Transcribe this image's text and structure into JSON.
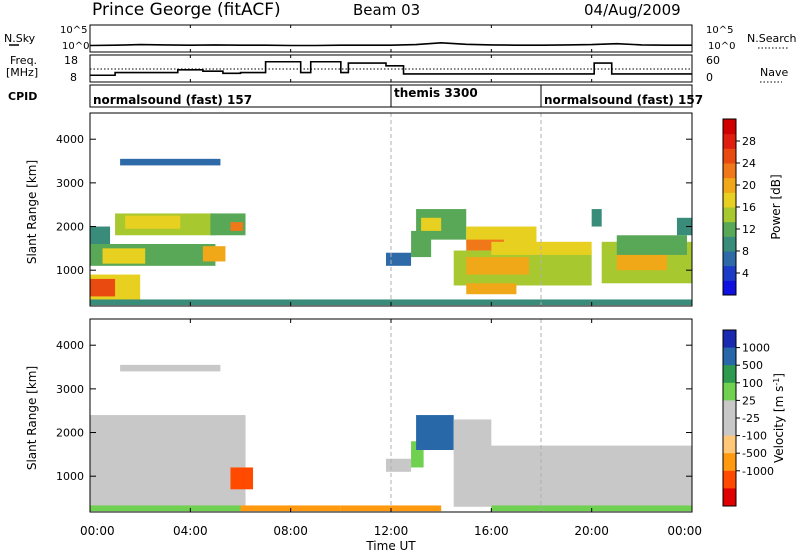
{
  "header": {
    "station": "Prince George (fitACF)",
    "beam": "Beam 03",
    "date": "04/Aug/2009"
  },
  "panel_labels": {
    "nsky": "N.Sky",
    "freq_line1": "Freq.",
    "freq_line2": "[MHz]",
    "cpid": "CPID",
    "nsearch": "N.Search",
    "nave": "Nave"
  },
  "colors": {
    "power_scale": [
      "#1010e0",
      "#1c3cc8",
      "#2e6aa8",
      "#3a8c7a",
      "#58a858",
      "#a8c830",
      "#e8d020",
      "#f0a818",
      "#f07818",
      "#e84a10",
      "#e01e10",
      "#d00000"
    ],
    "velocity_scale": [
      "#e00000",
      "#ff4a00",
      "#ff9a10",
      "#ffc878",
      "#c8c8c8",
      "#c8c8c8",
      "#70d050",
      "#2e9a50",
      "#2868a8",
      "#1a2ab0"
    ],
    "marker_line": "#b0b0b0"
  },
  "chart_data": [
    {
      "type": "line",
      "title": "N.Sky / N.Search",
      "y_tick_labels": [
        "10^5",
        "10^0"
      ],
      "right_tick_labels": [
        "10^5",
        "10^0"
      ],
      "x": [
        "00:00",
        "01:00",
        "02:00",
        "03:00",
        "04:00",
        "05:00",
        "06:00",
        "07:00",
        "08:00",
        "09:00",
        "10:00",
        "11:00",
        "12:00",
        "13:00",
        "14:00",
        "15:00",
        "16:00",
        "17:00",
        "18:00",
        "19:00",
        "20:00",
        "21:00",
        "22:00",
        "23:00",
        "24:00"
      ],
      "series": [
        {
          "name": "N.Sky",
          "values": [
            0.5,
            0.6,
            0.8,
            0.7,
            0.6,
            0.7,
            0.6,
            0.6,
            0.5,
            0.5,
            0.6,
            0.6,
            0.6,
            0.8,
            1.4,
            0.9,
            0.7,
            0.6,
            0.6,
            0.7,
            0.8,
            1.1,
            0.7,
            0.6,
            0.6
          ]
        }
      ]
    },
    {
      "type": "line",
      "title": "Frequency / Nave",
      "y_tick_labels": [
        "18",
        "8"
      ],
      "right_tick_labels": [
        "60",
        "0"
      ],
      "series": [
        {
          "name": "Freq.",
          "steps": [
            {
              "start": 0.0,
              "end": 1.0,
              "value": 10.5
            },
            {
              "start": 1.0,
              "end": 3.5,
              "value": 11.5
            },
            {
              "start": 3.5,
              "end": 4.5,
              "value": 12.5
            },
            {
              "start": 4.5,
              "end": 5.3,
              "value": 12.0
            },
            {
              "start": 5.3,
              "end": 6.0,
              "value": 11.2
            },
            {
              "start": 6.0,
              "end": 7.0,
              "value": 11.5
            },
            {
              "start": 7.0,
              "end": 8.4,
              "value": 15.5
            },
            {
              "start": 8.4,
              "end": 8.8,
              "value": 11.5
            },
            {
              "start": 8.8,
              "end": 10.0,
              "value": 15.5
            },
            {
              "start": 10.0,
              "end": 10.3,
              "value": 11.5
            },
            {
              "start": 10.3,
              "end": 11.8,
              "value": 15.0
            },
            {
              "start": 11.8,
              "end": 12.5,
              "value": 14.0
            },
            {
              "start": 12.5,
              "end": 20.1,
              "value": 11.0
            },
            {
              "start": 20.1,
              "end": 20.8,
              "value": 15.0
            },
            {
              "start": 20.8,
              "end": 24.0,
              "value": 11.0
            }
          ]
        },
        {
          "name": "Nave",
          "values": [
            33,
            33
          ]
        }
      ]
    },
    {
      "type": "table",
      "title": "CPID",
      "segments": [
        {
          "label": "normalsound (fast) 157",
          "start": 0,
          "end": 12
        },
        {
          "label": "themis 3300",
          "start": 12,
          "end": 18
        },
        {
          "label": "normalsound (fast) 157",
          "start": 18,
          "end": 24
        }
      ]
    },
    {
      "type": "heatmap",
      "ylabel": "Slant Range [km]",
      "ylim": [
        180,
        4600
      ],
      "y_ticks": [
        1000,
        2000,
        3000,
        4000
      ],
      "colorbar_label": "Power [dB]",
      "colorbar_ticks": [
        4,
        8,
        12,
        16,
        20,
        24,
        28
      ],
      "colorbar_range": [
        0,
        32
      ],
      "regions": [
        {
          "t0": 0.0,
          "t1": 2.0,
          "r0": 300,
          "r1": 900,
          "value": 16
        },
        {
          "t0": 0.0,
          "t1": 1.0,
          "r0": 400,
          "r1": 800,
          "value": 24
        },
        {
          "t0": 0.0,
          "t1": 5.0,
          "r0": 1100,
          "r1": 1600,
          "value": 12
        },
        {
          "t0": 0.5,
          "t1": 2.2,
          "r0": 1150,
          "r1": 1500,
          "value": 18
        },
        {
          "t0": 4.5,
          "t1": 5.4,
          "r0": 1200,
          "r1": 1550,
          "value": 20
        },
        {
          "t0": 0.0,
          "t1": 0.8,
          "r0": 1600,
          "r1": 2000,
          "value": 8
        },
        {
          "t0": 1.0,
          "t1": 5.0,
          "r0": 1800,
          "r1": 2300,
          "value": 14
        },
        {
          "t0": 1.4,
          "t1": 3.6,
          "r0": 1950,
          "r1": 2250,
          "value": 18
        },
        {
          "t0": 4.8,
          "t1": 6.2,
          "r0": 1800,
          "r1": 2300,
          "value": 12
        },
        {
          "t0": 5.6,
          "t1": 6.1,
          "r0": 1900,
          "r1": 2100,
          "value": 22
        },
        {
          "t0": 1.2,
          "t1": 5.2,
          "r0": 3400,
          "r1": 3550,
          "value": 6
        },
        {
          "t0": 0.0,
          "t1": 24.0,
          "r0": 200,
          "r1": 330,
          "value": 10
        },
        {
          "t0": 11.8,
          "t1": 12.8,
          "r0": 1100,
          "r1": 1400,
          "value": 6
        },
        {
          "t0": 12.8,
          "t1": 13.6,
          "r0": 1300,
          "r1": 1900,
          "value": 12
        },
        {
          "t0": 13.0,
          "t1": 15.0,
          "r0": 1700,
          "r1": 2400,
          "value": 12
        },
        {
          "t0": 13.2,
          "t1": 14.0,
          "r0": 1900,
          "r1": 2200,
          "value": 18
        },
        {
          "t0": 15.0,
          "t1": 17.8,
          "r0": 1600,
          "r1": 2000,
          "value": 16
        },
        {
          "t0": 15.0,
          "t1": 16.5,
          "r0": 1450,
          "r1": 1700,
          "value": 22
        },
        {
          "t0": 14.5,
          "t1": 20.0,
          "r0": 650,
          "r1": 1450,
          "value": 14
        },
        {
          "t0": 15.0,
          "t1": 17.5,
          "r0": 900,
          "r1": 1300,
          "value": 20
        },
        {
          "t0": 15.0,
          "t1": 17.0,
          "r0": 450,
          "r1": 700,
          "value": 20
        },
        {
          "t0": 16.0,
          "t1": 20.0,
          "r0": 1350,
          "r1": 1650,
          "value": 18
        },
        {
          "t0": 20.4,
          "t1": 24.0,
          "r0": 700,
          "r1": 1650,
          "value": 14
        },
        {
          "t0": 21.0,
          "t1": 23.0,
          "r0": 1000,
          "r1": 1400,
          "value": 20
        },
        {
          "t0": 21.0,
          "t1": 23.8,
          "r0": 1350,
          "r1": 1800,
          "value": 12
        },
        {
          "t0": 23.4,
          "t1": 24.0,
          "r0": 1800,
          "r1": 2200,
          "value": 10
        },
        {
          "t0": 20.0,
          "t1": 20.4,
          "r0": 2000,
          "r1": 2400,
          "value": 8
        }
      ]
    },
    {
      "type": "heatmap",
      "ylabel": "Slant Range [km]",
      "xlabel": "Time UT",
      "ylim": [
        180,
        4600
      ],
      "y_ticks": [
        1000,
        2000,
        3000,
        4000
      ],
      "x_tick_labels": [
        "00:00",
        "04:00",
        "08:00",
        "12:00",
        "16:00",
        "20:00",
        "00:00"
      ],
      "colorbar_label": "Velocity [m s^-1]",
      "colorbar_ticks": [
        -1000,
        -500,
        -100,
        -25,
        25,
        100,
        500,
        1000
      ],
      "regions": [
        {
          "t0": 0.0,
          "t1": 6.2,
          "r0": 300,
          "r1": 2400,
          "value": 0
        },
        {
          "t0": 5.6,
          "t1": 6.5,
          "r0": 700,
          "r1": 1200,
          "value": -300
        },
        {
          "t0": 1.2,
          "t1": 5.2,
          "r0": 3400,
          "r1": 3550,
          "value": 0
        },
        {
          "t0": 6.0,
          "t1": 10.0,
          "r0": 200,
          "r1": 330,
          "value": -60
        },
        {
          "t0": 0.0,
          "t1": 6.0,
          "r0": 200,
          "r1": 330,
          "value": 60
        },
        {
          "t0": 10.0,
          "t1": 14.0,
          "r0": 200,
          "r1": 330,
          "value": -60
        },
        {
          "t0": 11.8,
          "t1": 12.8,
          "r0": 1100,
          "r1": 1400,
          "value": 0
        },
        {
          "t0": 12.8,
          "t1": 13.3,
          "r0": 1200,
          "r1": 1800,
          "value": 200
        },
        {
          "t0": 13.0,
          "t1": 14.5,
          "r0": 1600,
          "r1": 2400,
          "value": 700
        },
        {
          "t0": 14.5,
          "t1": 16.0,
          "r0": 1500,
          "r1": 2300,
          "value": 0
        },
        {
          "t0": 14.5,
          "t1": 24.0,
          "r0": 300,
          "r1": 1700,
          "value": 0
        },
        {
          "t0": 16.0,
          "t1": 24.0,
          "r0": 200,
          "r1": 330,
          "value": 60
        }
      ]
    }
  ],
  "axes": {
    "y_tick_labels": [
      "1000",
      "2000",
      "3000",
      "4000"
    ],
    "x_tick_labels": [
      "00:00",
      "04:00",
      "08:00",
      "12:00",
      "16:00",
      "20:00",
      "00:00"
    ],
    "ylabel": "Slant Range [km]",
    "xlabel": "Time UT",
    "power_label": "Power [dB]",
    "power_ticks": [
      "4",
      "8",
      "12",
      "16",
      "20",
      "24",
      "28"
    ],
    "velocity_label": "Velocity [m s",
    "velocity_sup": "-1",
    "velocity_label_end": "]",
    "velocity_ticks": [
      "1000",
      "500",
      "100",
      "25",
      "-25",
      "-100",
      "-500",
      "-1000"
    ]
  }
}
